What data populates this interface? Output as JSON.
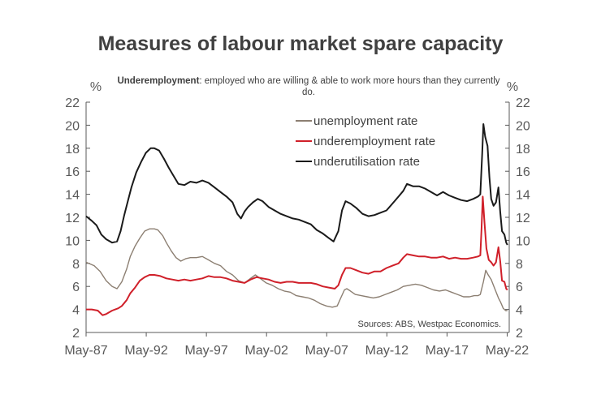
{
  "chart_data": {
    "type": "line",
    "title": "Measures of labour market spare capacity",
    "subtitle_bold": "Underemployment",
    "subtitle_rest": ": employed who are willing & able to work more hours than they currently do.",
    "ylabel_left": "%",
    "ylabel_right": "%",
    "source": "Sources: ABS, Westpac Economics.",
    "ylim": [
      2,
      22
    ],
    "yticks": [
      2,
      4,
      6,
      8,
      10,
      12,
      14,
      16,
      18,
      20,
      22
    ],
    "xlim": [
      1987.33,
      2022.5
    ],
    "xticks": [
      {
        "label": "May-87",
        "x": 1987.33
      },
      {
        "label": "May-92",
        "x": 1992.33
      },
      {
        "label": "May-97",
        "x": 1997.33
      },
      {
        "label": "May-02",
        "x": 2002.33
      },
      {
        "label": "May-07",
        "x": 2007.33
      },
      {
        "label": "May-12",
        "x": 2012.33
      },
      {
        "label": "May-17",
        "x": 2017.33
      },
      {
        "label": "May-22",
        "x": 2022.33
      }
    ],
    "legend_position": "top-right",
    "grid": false,
    "series": [
      {
        "name": "unemployment rate",
        "color": "#8c7f72",
        "points": [
          [
            1987.33,
            8.1
          ],
          [
            1988.0,
            7.8
          ],
          [
            1988.5,
            7.3
          ],
          [
            1989.0,
            6.5
          ],
          [
            1989.5,
            6.0
          ],
          [
            1989.9,
            5.8
          ],
          [
            1990.3,
            6.4
          ],
          [
            1990.7,
            7.5
          ],
          [
            1991.0,
            8.6
          ],
          [
            1991.4,
            9.5
          ],
          [
            1991.8,
            10.2
          ],
          [
            1992.2,
            10.8
          ],
          [
            1992.6,
            11.0
          ],
          [
            1993.0,
            11.0
          ],
          [
            1993.3,
            10.9
          ],
          [
            1993.7,
            10.4
          ],
          [
            1994.0,
            9.8
          ],
          [
            1994.4,
            9.1
          ],
          [
            1994.8,
            8.5
          ],
          [
            1995.2,
            8.2
          ],
          [
            1995.6,
            8.4
          ],
          [
            1996.0,
            8.5
          ],
          [
            1996.5,
            8.5
          ],
          [
            1997.0,
            8.6
          ],
          [
            1997.5,
            8.3
          ],
          [
            1998.0,
            8.0
          ],
          [
            1998.5,
            7.8
          ],
          [
            1999.0,
            7.3
          ],
          [
            1999.5,
            7.0
          ],
          [
            2000.0,
            6.5
          ],
          [
            2000.5,
            6.3
          ],
          [
            2001.0,
            6.7
          ],
          [
            2001.4,
            7.0
          ],
          [
            2001.8,
            6.7
          ],
          [
            2002.3,
            6.3
          ],
          [
            2002.8,
            6.1
          ],
          [
            2003.3,
            5.8
          ],
          [
            2003.8,
            5.6
          ],
          [
            2004.3,
            5.5
          ],
          [
            2004.8,
            5.2
          ],
          [
            2005.3,
            5.1
          ],
          [
            2005.8,
            5.0
          ],
          [
            2006.3,
            4.8
          ],
          [
            2006.8,
            4.5
          ],
          [
            2007.3,
            4.3
          ],
          [
            2007.8,
            4.2
          ],
          [
            2008.2,
            4.3
          ],
          [
            2008.5,
            5.0
          ],
          [
            2008.8,
            5.7
          ],
          [
            2009.0,
            5.8
          ],
          [
            2009.3,
            5.6
          ],
          [
            2009.7,
            5.3
          ],
          [
            2010.2,
            5.2
          ],
          [
            2010.7,
            5.1
          ],
          [
            2011.2,
            5.0
          ],
          [
            2011.7,
            5.1
          ],
          [
            2012.2,
            5.3
          ],
          [
            2012.7,
            5.5
          ],
          [
            2013.2,
            5.7
          ],
          [
            2013.7,
            6.0
          ],
          [
            2014.2,
            6.1
          ],
          [
            2014.7,
            6.2
          ],
          [
            2015.2,
            6.1
          ],
          [
            2015.7,
            5.9
          ],
          [
            2016.2,
            5.7
          ],
          [
            2016.7,
            5.6
          ],
          [
            2017.2,
            5.7
          ],
          [
            2017.7,
            5.5
          ],
          [
            2018.2,
            5.3
          ],
          [
            2018.7,
            5.1
          ],
          [
            2019.2,
            5.1
          ],
          [
            2019.6,
            5.2
          ],
          [
            2019.9,
            5.2
          ],
          [
            2020.1,
            5.3
          ],
          [
            2020.35,
            6.4
          ],
          [
            2020.55,
            7.4
          ],
          [
            2020.75,
            7.0
          ],
          [
            2021.0,
            6.6
          ],
          [
            2021.3,
            5.8
          ],
          [
            2021.6,
            5.0
          ],
          [
            2021.8,
            4.6
          ],
          [
            2022.0,
            4.1
          ],
          [
            2022.2,
            3.9
          ],
          [
            2022.35,
            3.9
          ]
        ]
      },
      {
        "name": "underemployment rate",
        "color": "#d0202a",
        "points": [
          [
            1987.33,
            4.0
          ],
          [
            1987.8,
            4.0
          ],
          [
            1988.3,
            3.9
          ],
          [
            1988.7,
            3.5
          ],
          [
            1989.0,
            3.6
          ],
          [
            1989.5,
            3.9
          ],
          [
            1990.0,
            4.1
          ],
          [
            1990.3,
            4.3
          ],
          [
            1990.7,
            4.8
          ],
          [
            1991.0,
            5.4
          ],
          [
            1991.4,
            5.9
          ],
          [
            1991.8,
            6.5
          ],
          [
            1992.2,
            6.8
          ],
          [
            1992.6,
            7.0
          ],
          [
            1993.0,
            7.0
          ],
          [
            1993.5,
            6.9
          ],
          [
            1994.0,
            6.7
          ],
          [
            1994.5,
            6.6
          ],
          [
            1995.0,
            6.5
          ],
          [
            1995.5,
            6.6
          ],
          [
            1996.0,
            6.5
          ],
          [
            1996.5,
            6.6
          ],
          [
            1997.0,
            6.7
          ],
          [
            1997.5,
            6.9
          ],
          [
            1998.0,
            6.8
          ],
          [
            1998.5,
            6.8
          ],
          [
            1999.0,
            6.7
          ],
          [
            1999.5,
            6.5
          ],
          [
            2000.0,
            6.4
          ],
          [
            2000.5,
            6.3
          ],
          [
            2001.0,
            6.6
          ],
          [
            2001.5,
            6.8
          ],
          [
            2002.0,
            6.7
          ],
          [
            2002.5,
            6.6
          ],
          [
            2003.0,
            6.4
          ],
          [
            2003.5,
            6.3
          ],
          [
            2004.0,
            6.4
          ],
          [
            2004.5,
            6.4
          ],
          [
            2005.0,
            6.3
          ],
          [
            2005.5,
            6.3
          ],
          [
            2006.0,
            6.3
          ],
          [
            2006.5,
            6.2
          ],
          [
            2007.0,
            6.0
          ],
          [
            2007.5,
            5.9
          ],
          [
            2008.0,
            5.8
          ],
          [
            2008.3,
            6.1
          ],
          [
            2008.6,
            7.0
          ],
          [
            2008.9,
            7.6
          ],
          [
            2009.3,
            7.6
          ],
          [
            2009.8,
            7.4
          ],
          [
            2010.3,
            7.2
          ],
          [
            2010.8,
            7.1
          ],
          [
            2011.3,
            7.3
          ],
          [
            2011.8,
            7.3
          ],
          [
            2012.3,
            7.6
          ],
          [
            2012.8,
            7.8
          ],
          [
            2013.3,
            8.0
          ],
          [
            2013.7,
            8.5
          ],
          [
            2014.0,
            8.8
          ],
          [
            2014.5,
            8.7
          ],
          [
            2015.0,
            8.6
          ],
          [
            2015.5,
            8.6
          ],
          [
            2016.0,
            8.5
          ],
          [
            2016.5,
            8.5
          ],
          [
            2017.0,
            8.6
          ],
          [
            2017.5,
            8.4
          ],
          [
            2018.0,
            8.5
          ],
          [
            2018.5,
            8.4
          ],
          [
            2019.0,
            8.4
          ],
          [
            2019.5,
            8.5
          ],
          [
            2019.9,
            8.6
          ],
          [
            2020.1,
            8.7
          ],
          [
            2020.2,
            11.0
          ],
          [
            2020.3,
            13.8
          ],
          [
            2020.45,
            11.5
          ],
          [
            2020.6,
            9.3
          ],
          [
            2020.8,
            8.3
          ],
          [
            2021.0,
            8.1
          ],
          [
            2021.2,
            7.8
          ],
          [
            2021.4,
            8.1
          ],
          [
            2021.6,
            9.4
          ],
          [
            2021.75,
            8.2
          ],
          [
            2021.9,
            6.5
          ],
          [
            2022.1,
            6.4
          ],
          [
            2022.25,
            5.8
          ],
          [
            2022.35,
            5.7
          ]
        ]
      },
      {
        "name": "underutilisation rate",
        "color": "#1a1a1a",
        "points": [
          [
            1987.33,
            12.1
          ],
          [
            1987.8,
            11.7
          ],
          [
            1988.2,
            11.3
          ],
          [
            1988.6,
            10.5
          ],
          [
            1989.0,
            10.1
          ],
          [
            1989.5,
            9.8
          ],
          [
            1989.9,
            9.9
          ],
          [
            1990.2,
            10.8
          ],
          [
            1990.5,
            12.2
          ],
          [
            1990.8,
            13.4
          ],
          [
            1991.1,
            14.6
          ],
          [
            1991.5,
            15.9
          ],
          [
            1991.9,
            16.8
          ],
          [
            1992.3,
            17.6
          ],
          [
            1992.7,
            18.0
          ],
          [
            1993.0,
            18.0
          ],
          [
            1993.4,
            17.8
          ],
          [
            1993.8,
            17.1
          ],
          [
            1994.2,
            16.3
          ],
          [
            1994.6,
            15.6
          ],
          [
            1995.0,
            14.9
          ],
          [
            1995.5,
            14.8
          ],
          [
            1996.0,
            15.1
          ],
          [
            1996.5,
            15.0
          ],
          [
            1997.0,
            15.2
          ],
          [
            1997.5,
            15.0
          ],
          [
            1998.0,
            14.6
          ],
          [
            1998.5,
            14.2
          ],
          [
            1999.0,
            13.8
          ],
          [
            1999.5,
            13.3
          ],
          [
            1999.9,
            12.3
          ],
          [
            2000.2,
            11.9
          ],
          [
            2000.5,
            12.5
          ],
          [
            2000.8,
            12.9
          ],
          [
            2001.2,
            13.3
          ],
          [
            2001.6,
            13.6
          ],
          [
            2002.0,
            13.4
          ],
          [
            2002.5,
            12.9
          ],
          [
            2003.0,
            12.6
          ],
          [
            2003.5,
            12.3
          ],
          [
            2004.0,
            12.1
          ],
          [
            2004.5,
            11.9
          ],
          [
            2005.0,
            11.8
          ],
          [
            2005.5,
            11.6
          ],
          [
            2006.0,
            11.4
          ],
          [
            2006.5,
            10.9
          ],
          [
            2007.0,
            10.6
          ],
          [
            2007.5,
            10.2
          ],
          [
            2007.9,
            9.9
          ],
          [
            2008.3,
            10.8
          ],
          [
            2008.6,
            12.6
          ],
          [
            2008.9,
            13.4
          ],
          [
            2009.3,
            13.2
          ],
          [
            2009.8,
            12.8
          ],
          [
            2010.3,
            12.3
          ],
          [
            2010.8,
            12.1
          ],
          [
            2011.3,
            12.2
          ],
          [
            2011.8,
            12.4
          ],
          [
            2012.3,
            12.6
          ],
          [
            2012.8,
            13.2
          ],
          [
            2013.3,
            13.8
          ],
          [
            2013.7,
            14.3
          ],
          [
            2014.0,
            14.9
          ],
          [
            2014.5,
            14.7
          ],
          [
            2015.0,
            14.7
          ],
          [
            2015.5,
            14.5
          ],
          [
            2016.0,
            14.2
          ],
          [
            2016.5,
            13.9
          ],
          [
            2017.0,
            14.2
          ],
          [
            2017.5,
            13.9
          ],
          [
            2018.0,
            13.7
          ],
          [
            2018.5,
            13.5
          ],
          [
            2019.0,
            13.4
          ],
          [
            2019.5,
            13.6
          ],
          [
            2019.9,
            13.8
          ],
          [
            2020.1,
            14.0
          ],
          [
            2020.25,
            17.5
          ],
          [
            2020.35,
            20.1
          ],
          [
            2020.5,
            19.0
          ],
          [
            2020.7,
            18.2
          ],
          [
            2020.85,
            15.5
          ],
          [
            2021.0,
            13.6
          ],
          [
            2021.2,
            13.0
          ],
          [
            2021.4,
            13.3
          ],
          [
            2021.6,
            14.6
          ],
          [
            2021.75,
            12.5
          ],
          [
            2021.9,
            10.8
          ],
          [
            2022.1,
            10.5
          ],
          [
            2022.25,
            9.8
          ],
          [
            2022.35,
            9.6
          ]
        ]
      }
    ]
  }
}
